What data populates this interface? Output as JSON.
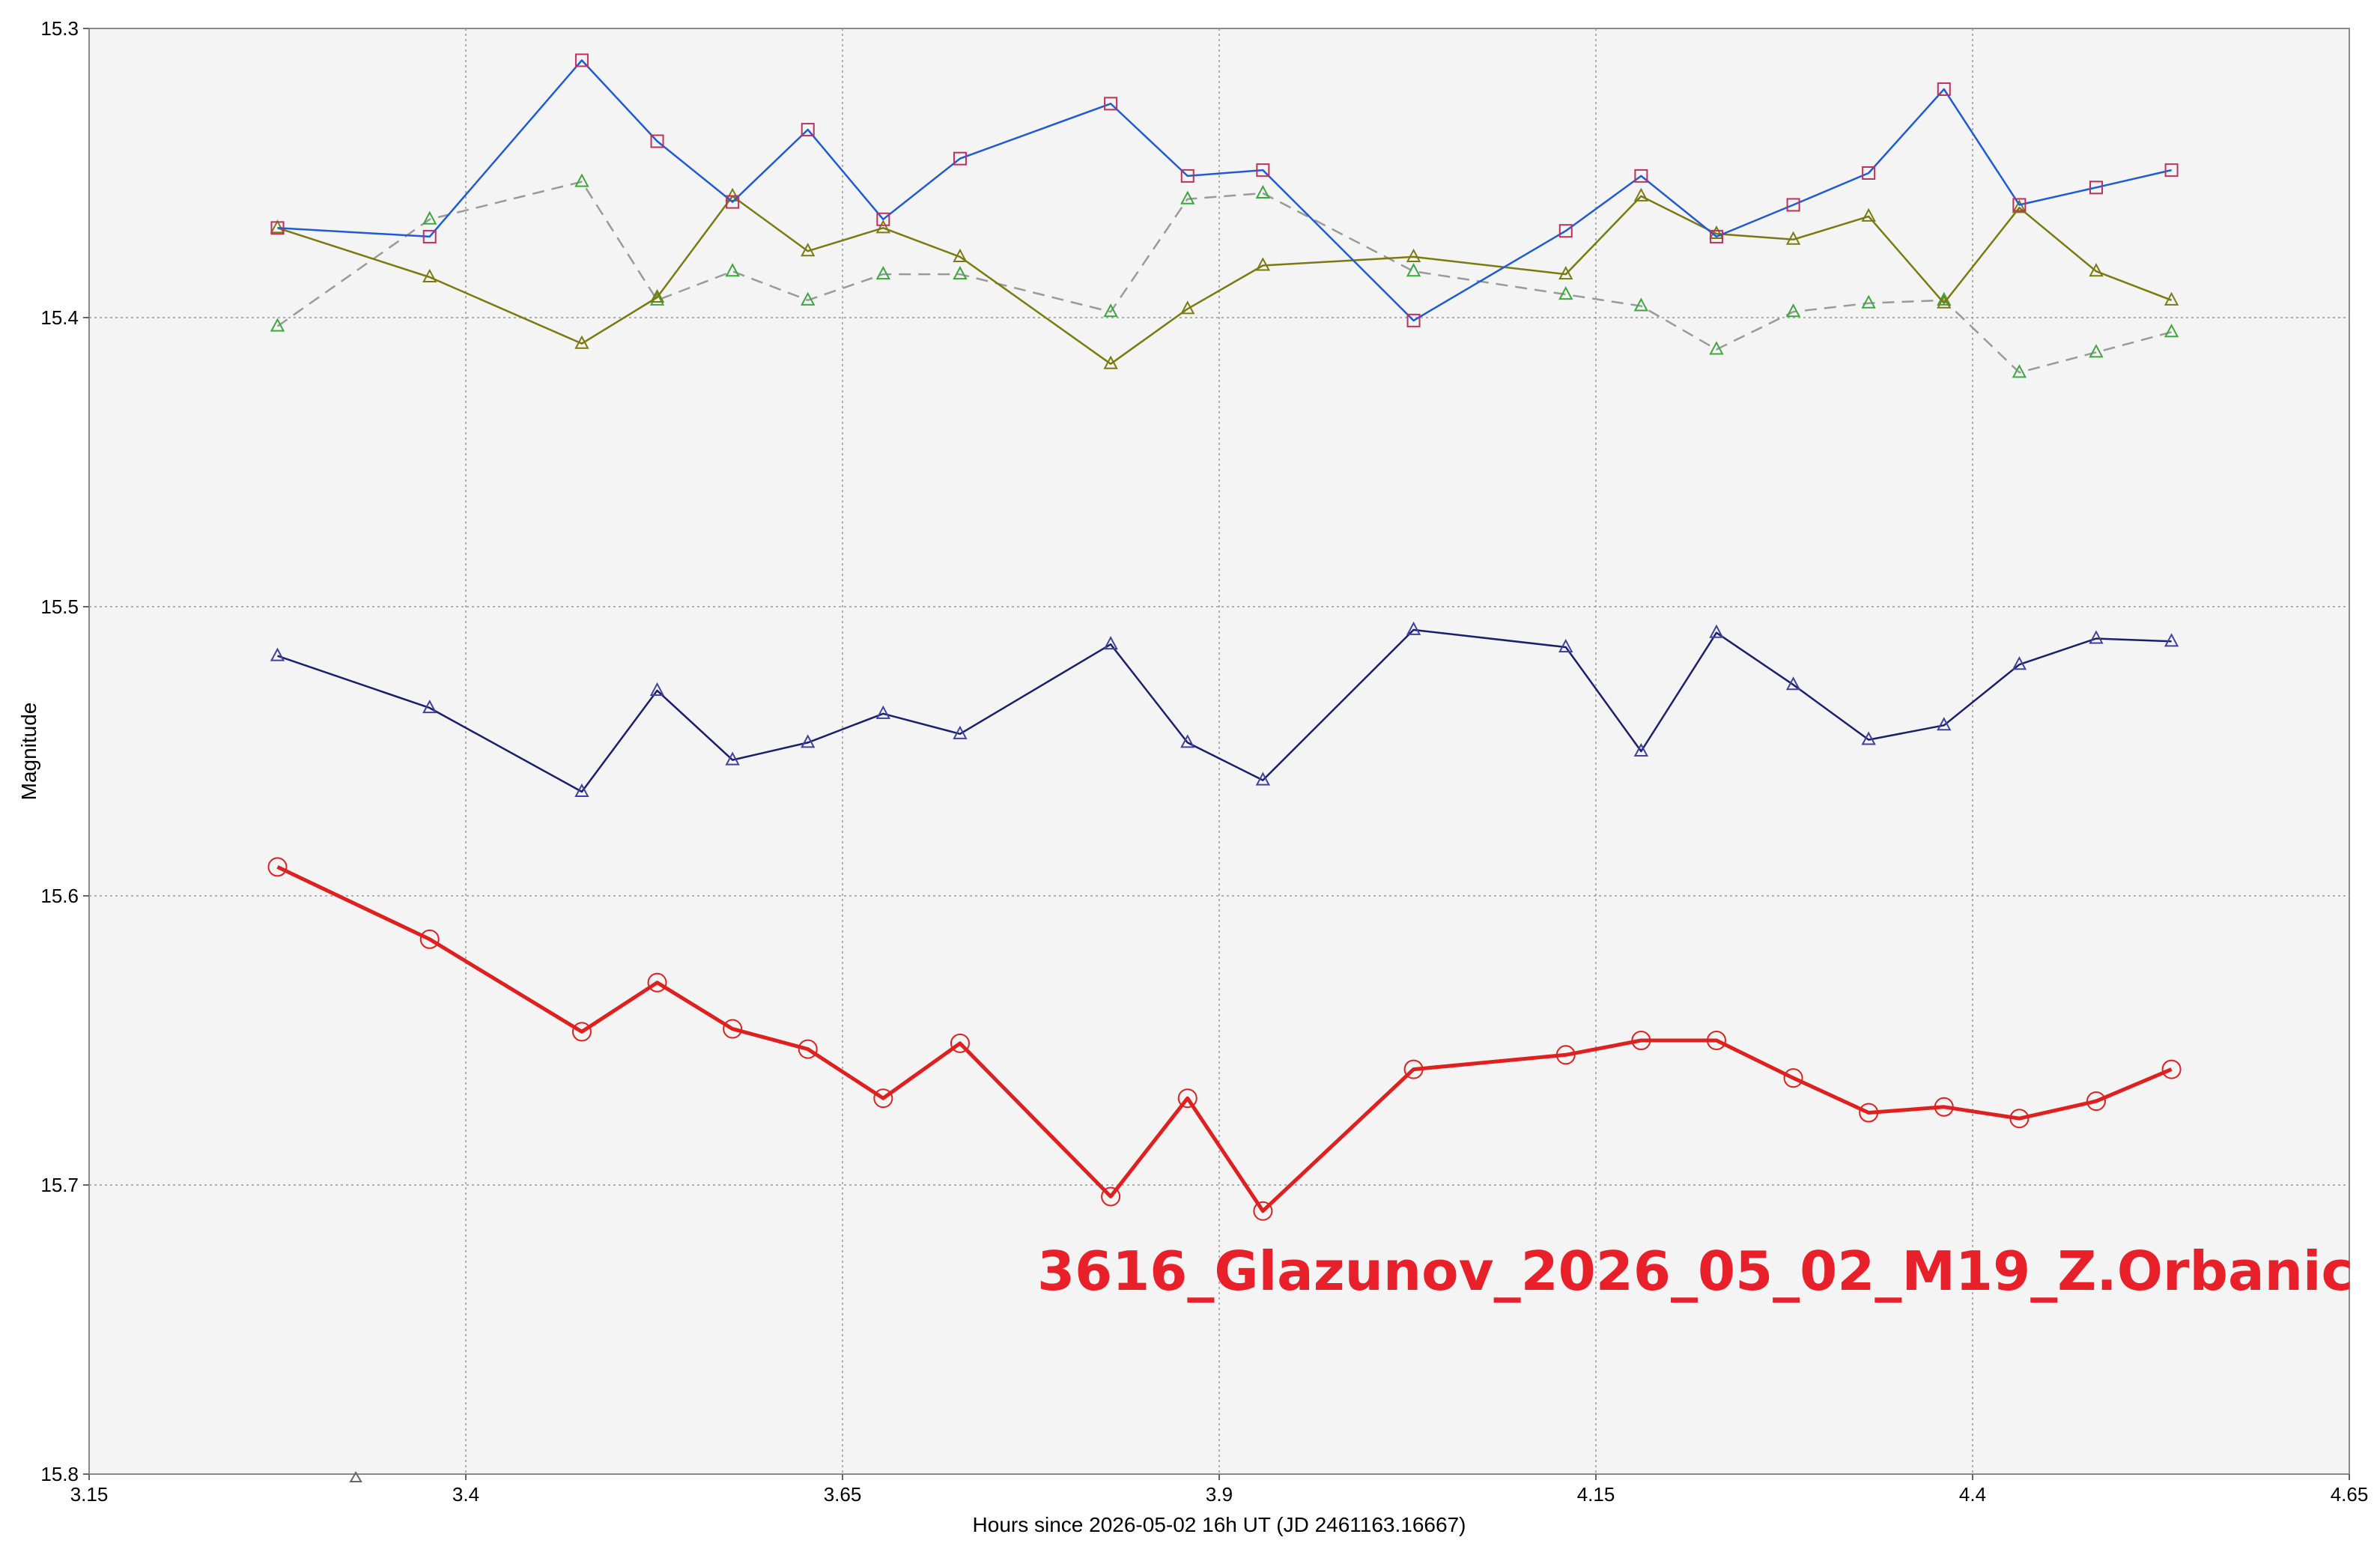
{
  "chart_data": {
    "type": "line",
    "xlabel": "Hours since 2026-05-02 16h UT (JD 2461163.16667)",
    "ylabel": "Magnitude",
    "xlim": [
      3.15,
      4.65
    ],
    "ylim": [
      15.3,
      15.8
    ],
    "y_inverted": true,
    "grid": true,
    "x_ticks": [
      "3.15",
      "3.4",
      "3.65",
      "3.9",
      "4.15",
      "4.4",
      "4.65"
    ],
    "y_ticks": [
      "15.3",
      "15.4",
      "15.5",
      "15.6",
      "15.7",
      "15.8"
    ],
    "annotation": "3616_Glazunov_2026_05_02_M19_Z.Orbanic",
    "x": [
      3.275,
      3.376,
      3.477,
      3.527,
      3.577,
      3.627,
      3.677,
      3.728,
      3.828,
      3.879,
      3.929,
      4.029,
      4.13,
      4.18,
      4.23,
      4.281,
      4.331,
      4.381,
      4.431,
      4.482,
      4.532
    ],
    "series": [
      {
        "color": "#e0201e",
        "line": "solid-thick",
        "marker": "circle",
        "y": [
          15.59,
          15.615,
          15.647,
          15.63,
          15.646,
          15.653,
          15.67,
          15.651,
          15.704,
          15.67,
          15.709,
          15.66,
          15.655,
          15.65,
          15.65,
          15.663,
          15.675,
          15.673,
          15.677,
          15.671,
          15.66
        ]
      },
      {
        "color": "#1a1f6e",
        "line": "solid",
        "marker": "triangle",
        "y": [
          15.517,
          15.535,
          15.564,
          15.529,
          15.553,
          15.547,
          15.537,
          15.544,
          15.513,
          15.547,
          15.56,
          15.508,
          15.514,
          15.55,
          15.509,
          15.527,
          15.546,
          15.541,
          15.52,
          15.511,
          15.512
        ]
      },
      {
        "color": "#1f5bd6",
        "line": "solid",
        "marker": "square",
        "y": [
          15.369,
          15.372,
          15.311,
          15.339,
          15.36,
          15.335,
          15.366,
          15.345,
          15.326,
          15.351,
          15.349,
          15.401,
          15.37,
          15.351,
          15.372,
          15.361,
          15.35,
          15.321,
          15.361,
          15.355,
          15.349
        ]
      },
      {
        "color": "#7a7a10",
        "line": "solid",
        "marker": "triangle",
        "y": [
          15.369,
          15.386,
          15.409,
          15.393,
          15.358,
          15.377,
          15.369,
          15.379,
          15.416,
          15.397,
          15.382,
          15.379,
          15.385,
          15.358,
          15.371,
          15.373,
          15.365,
          15.395,
          15.362,
          15.384,
          15.394
        ]
      },
      {
        "color": "#9a9a9a",
        "line": "dashed",
        "marker": "triangle",
        "y": [
          15.403,
          15.366,
          15.353,
          15.394,
          15.384,
          15.394,
          15.385,
          15.385,
          15.398,
          15.359,
          15.357,
          15.384,
          15.392,
          15.396,
          15.411,
          15.398,
          15.395,
          15.394,
          15.419,
          15.412,
          15.405
        ]
      }
    ]
  }
}
